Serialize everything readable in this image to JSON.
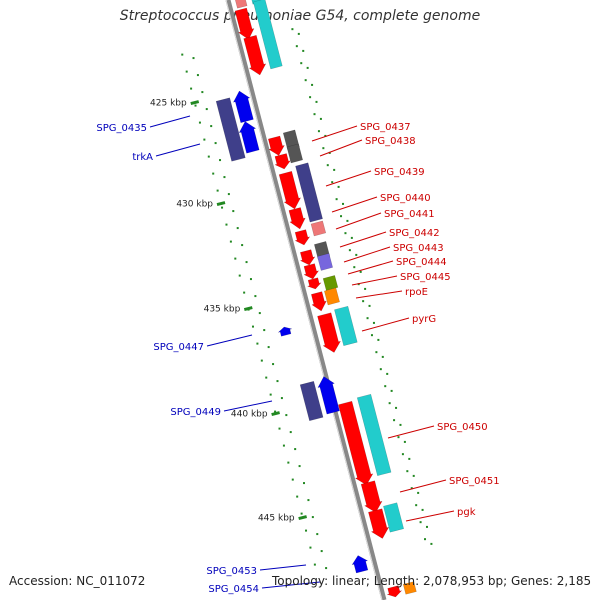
{
  "title": "Streptococcus pneumoniae G54, complete genome",
  "accession": "Accession: NC_011072",
  "topology": "Topology: linear; Length: 2,078,953 bp; Genes: 2,185",
  "colors": {
    "backbone": "#888888",
    "forward_label": "#0000bb",
    "reverse_label": "#cc0000",
    "tick": "#228822",
    "red": "#ff0000",
    "blue": "#0000ee",
    "slate": "#3f3f8a",
    "cyan": "#22cccc",
    "gray": "#555555",
    "pink": "#ee7777",
    "purple": "#7766dd",
    "olive": "#669900",
    "orange": "#ff8800"
  },
  "scale_labels": [
    "425 kbp",
    "430 kbp",
    "435 kbp",
    "440 kbp",
    "445 kbp"
  ],
  "forward_labels": [
    "SPG_0435",
    "trkA",
    "SPG_0447",
    "SPG_0449",
    "SPG_0453",
    "SPG_0454"
  ],
  "reverse_labels": [
    "SPG_0437",
    "SPG_0438",
    "SPG_0439",
    "SPG_0440",
    "SPG_0441",
    "SPG_0442",
    "SPG_0443",
    "SPG_0444",
    "SPG_0445",
    "rpoE",
    "pyrG",
    "SPG_0450",
    "SPG_0451",
    "pgk"
  ]
}
